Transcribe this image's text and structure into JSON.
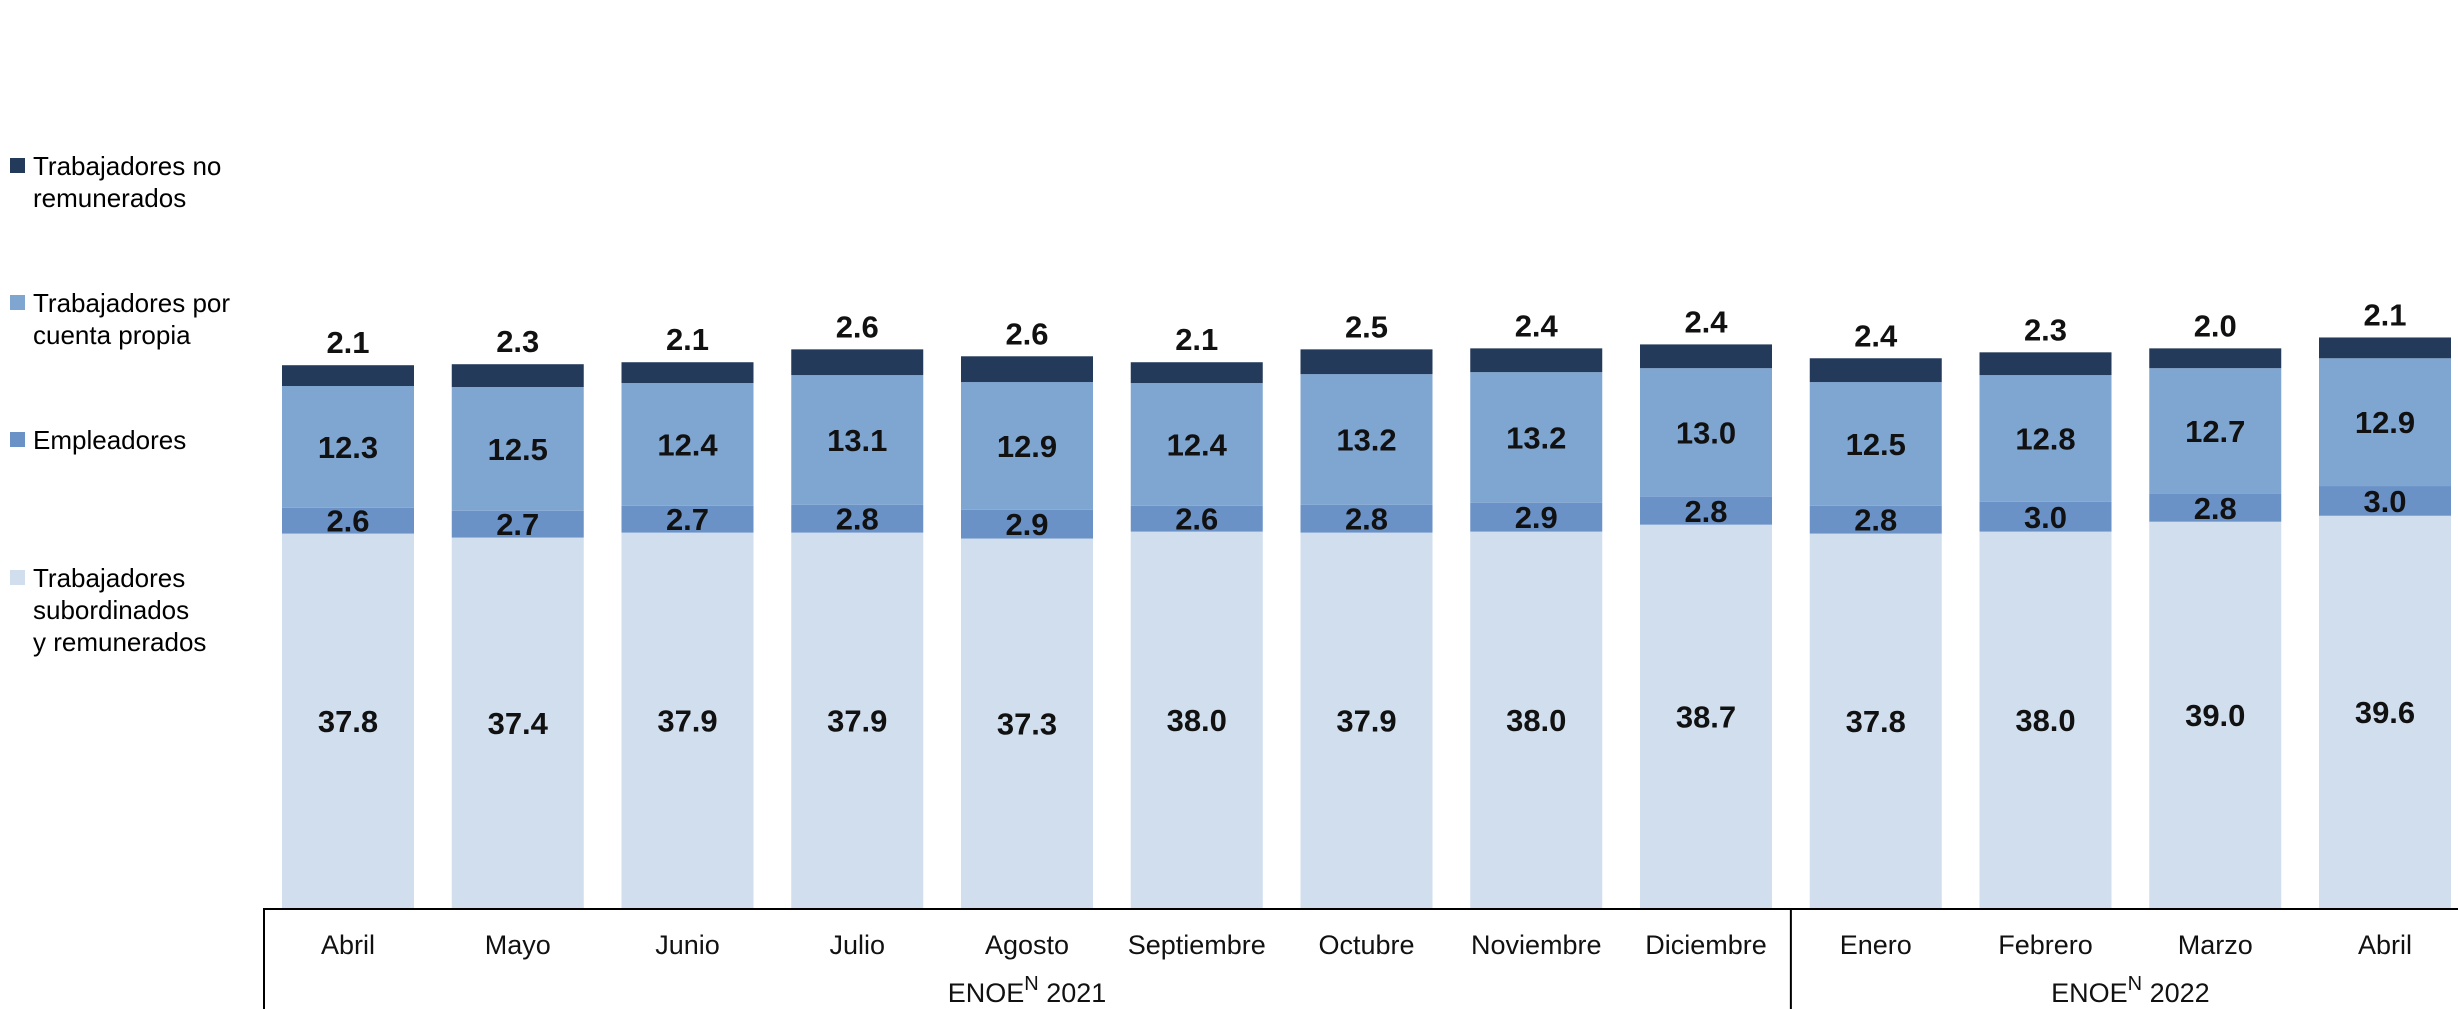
{
  "chart_data": {
    "type": "bar",
    "stacked": true,
    "categories": [
      "Abril",
      "Mayo",
      "Junio",
      "Julio",
      "Agosto",
      "Septiembre",
      "Octubre",
      "Noviembre",
      "Diciembre",
      "Enero",
      "Febrero",
      "Marzo",
      "Abril"
    ],
    "groups": [
      {
        "label": "ENOE",
        "superscript": "N",
        "year": "2021",
        "count": 9
      },
      {
        "label": "ENOE",
        "superscript": "N",
        "year": "2022",
        "count": 4
      }
    ],
    "series": [
      {
        "name": "Trabajadores subordinados y remunerados",
        "color": "#d0deee",
        "values": [
          37.8,
          37.4,
          37.9,
          37.9,
          37.3,
          38.0,
          37.9,
          38.0,
          38.7,
          37.8,
          38.0,
          39.0,
          39.6
        ]
      },
      {
        "name": "Empleadores",
        "color": "#6a92c7",
        "values": [
          2.6,
          2.7,
          2.7,
          2.8,
          2.9,
          2.6,
          2.8,
          2.9,
          2.8,
          2.8,
          3.0,
          2.8,
          3.0
        ]
      },
      {
        "name": "Trabajadores por cuenta propia",
        "color": "#7fa5d1",
        "values": [
          12.3,
          12.5,
          12.4,
          13.1,
          12.9,
          12.4,
          13.2,
          13.2,
          13.0,
          12.5,
          12.8,
          12.7,
          12.9
        ]
      },
      {
        "name": "Trabajadores no remunerados",
        "color": "#233a5a",
        "values": [
          2.1,
          2.3,
          2.1,
          2.6,
          2.6,
          2.1,
          2.5,
          2.4,
          2.4,
          2.4,
          2.3,
          2.0,
          2.1
        ]
      }
    ],
    "legend": {
      "position": "left",
      "items": [
        {
          "label": "Trabajadores no\nremunerados",
          "color": "#233a5a"
        },
        {
          "label": "Trabajadores por\ncuenta propia",
          "color": "#7fa5d1"
        },
        {
          "label": "Empleadores",
          "color": "#6a92c7"
        },
        {
          "label": "Trabajadores\nsubordinados\ny remunerados",
          "color": "#d0deee"
        }
      ]
    },
    "grid": false,
    "value_labels": true
  }
}
